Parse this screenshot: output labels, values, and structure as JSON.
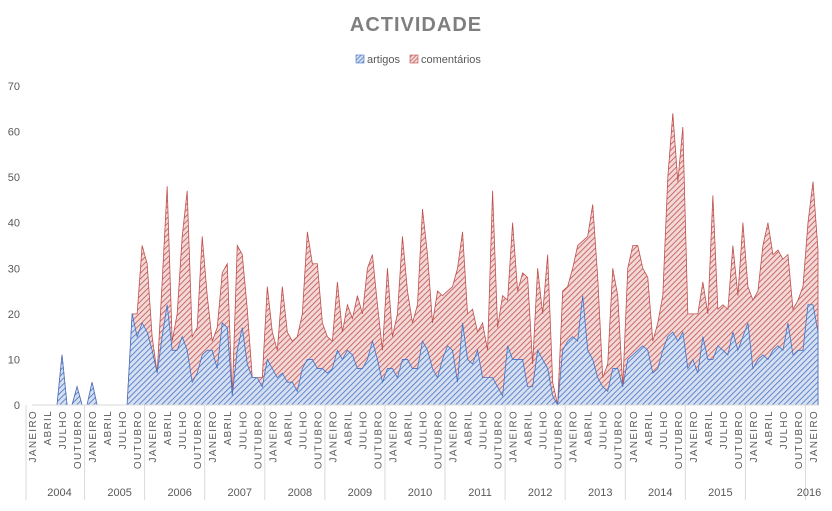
{
  "chart_data": {
    "type": "area",
    "stacked": true,
    "title": "ACTIVIDADE",
    "legend": [
      {
        "name": "artigos",
        "color": "#4472c4"
      },
      {
        "name": "comentários",
        "color": "#c0504d"
      }
    ],
    "legend_position": "top-center",
    "ylim": [
      0,
      70
    ],
    "yticks": [
      0,
      10,
      20,
      30,
      40,
      50,
      60,
      70
    ],
    "grid": false,
    "tick_label_months": [
      "JANEIRO",
      "ABRIL",
      "JULHO",
      "OUTUBRO"
    ],
    "years": [
      "2004",
      "2005",
      "2006",
      "2007",
      "2008",
      "2009",
      "2010",
      "2011",
      "2012",
      "2013",
      "2014",
      "2015",
      "2016"
    ],
    "start": "2004-01",
    "series": [
      {
        "name": "artigos",
        "values": [
          0,
          0,
          0,
          0,
          0,
          0,
          11,
          0,
          0,
          4,
          0,
          0,
          5,
          0,
          0,
          0,
          0,
          0,
          0,
          0,
          20,
          15,
          18,
          16,
          12,
          7,
          15,
          22,
          12,
          12,
          15,
          12,
          5,
          7,
          11,
          12,
          12,
          8,
          18,
          17,
          2,
          12,
          17,
          9,
          6,
          6,
          4,
          10,
          8,
          6,
          7,
          5,
          5,
          3,
          8,
          10,
          10,
          8,
          8,
          7,
          8,
          12,
          10,
          12,
          11,
          8,
          8,
          10,
          14,
          10,
          5,
          8,
          8,
          6,
          10,
          10,
          8,
          8,
          14,
          12,
          8,
          6,
          10,
          13,
          12,
          5,
          18,
          10,
          9,
          12,
          6,
          6,
          6,
          4,
          2,
          13,
          10,
          10,
          10,
          4,
          4,
          12,
          10,
          8,
          2,
          0,
          12,
          14,
          15,
          14,
          24,
          12,
          10,
          6,
          4,
          3,
          8,
          8,
          4,
          10,
          11,
          12,
          13,
          12,
          7,
          8,
          12,
          15,
          16,
          14,
          16,
          8,
          10,
          7,
          15,
          10,
          10,
          13,
          12,
          11,
          16,
          12,
          15,
          18,
          8,
          10,
          11,
          10,
          12,
          13,
          12,
          18,
          11,
          12,
          12,
          22,
          22,
          16
        ]
      },
      {
        "name": "comentários",
        "values": [
          0,
          0,
          0,
          0,
          0,
          0,
          0,
          0,
          0,
          0,
          0,
          0,
          0,
          0,
          0,
          0,
          0,
          0,
          0,
          0,
          0,
          5,
          17,
          15,
          3,
          0,
          12,
          26,
          2,
          8,
          22,
          35,
          10,
          10,
          26,
          12,
          2,
          9,
          11,
          14,
          0,
          23,
          16,
          12,
          0,
          0,
          2,
          16,
          8,
          6,
          19,
          11,
          9,
          12,
          12,
          28,
          21,
          23,
          10,
          8,
          6,
          15,
          6,
          10,
          8,
          16,
          12,
          20,
          19,
          12,
          7,
          22,
          7,
          14,
          27,
          15,
          10,
          14,
          29,
          21,
          10,
          19,
          14,
          12,
          14,
          25,
          20,
          10,
          12,
          4,
          12,
          6,
          41,
          13,
          22,
          10,
          30,
          15,
          19,
          24,
          5,
          18,
          10,
          25,
          3,
          0,
          13,
          12,
          15,
          21,
          12,
          25,
          34,
          22,
          2,
          6,
          22,
          16,
          0,
          20,
          24,
          23,
          17,
          16,
          7,
          10,
          12,
          35,
          48,
          35,
          45,
          12,
          10,
          13,
          12,
          10,
          36,
          8,
          10,
          10,
          19,
          12,
          25,
          8,
          15,
          15,
          24,
          30,
          21,
          21,
          20,
          15,
          10,
          11,
          14,
          18,
          27,
          18
        ]
      }
    ]
  }
}
